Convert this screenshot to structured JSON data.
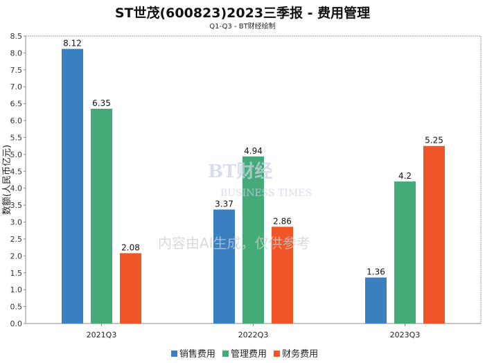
{
  "chart_data": {
    "type": "bar",
    "title": "ST世茂(600823)2023三季报 - 费用管理",
    "subtitle": "Q1-Q3 - BT财经绘制",
    "xlabel": "",
    "ylabel": "数额(人民币亿元)",
    "ylim": [
      0,
      8.5
    ],
    "yticks": [
      "0.0",
      "0.5",
      "1.0",
      "1.5",
      "2.0",
      "2.5",
      "3.0",
      "3.5",
      "4.0",
      "4.5",
      "5.0",
      "5.5",
      "6.0",
      "6.5",
      "7.0",
      "7.5",
      "8.0",
      "8.5"
    ],
    "categories": [
      "2021Q3",
      "2022Q3",
      "2023Q3"
    ],
    "series": [
      {
        "name": "销售费用",
        "color": "#3a80c0",
        "values": [
          8.12,
          3.37,
          1.36
        ],
        "labels": [
          "8.12",
          "3.37",
          "1.36"
        ]
      },
      {
        "name": "管理费用",
        "color": "#44aa77",
        "values": [
          6.35,
          4.94,
          4.2
        ],
        "labels": [
          "6.35",
          "4.94",
          "4.2"
        ]
      },
      {
        "name": "财务费用",
        "color": "#f05528",
        "values": [
          2.08,
          2.86,
          5.25
        ],
        "labels": [
          "2.08",
          "2.86",
          "5.25"
        ]
      }
    ],
    "legend_position": "bottom",
    "grid": false
  },
  "watermark": {
    "brand": "BT财经",
    "brand_en": "BUSINESS TIMES",
    "notice": "内容由AI生成，仅供参考"
  }
}
